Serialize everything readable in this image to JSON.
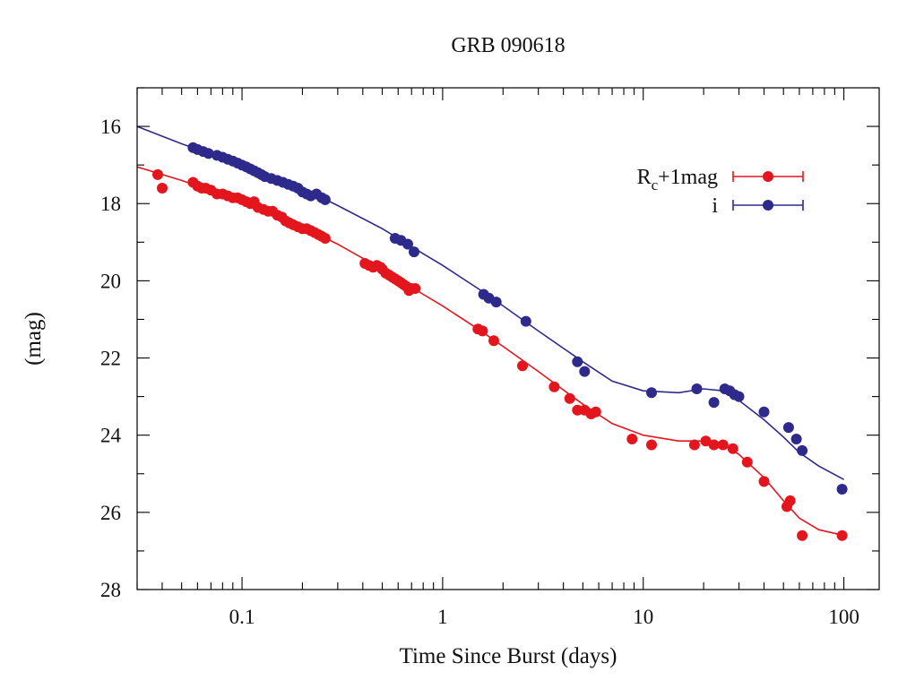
{
  "chart_data": {
    "type": "scatter",
    "title": "GRB 090618",
    "xlabel": "Time Since Burst (days)",
    "ylabel": "(mag)",
    "x_scale": "log",
    "xlim": [
      0.03,
      150
    ],
    "ylim": [
      15,
      28
    ],
    "y_inverted": true,
    "x_major_ticks": [
      0.1,
      1,
      10,
      100
    ],
    "x_tick_labels": [
      "0.1",
      "1",
      "10",
      "100"
    ],
    "y_major_ticks": [
      16,
      18,
      20,
      22,
      24,
      26,
      28
    ],
    "y_tick_labels": [
      "16",
      "18",
      "20",
      "22",
      "24",
      "26",
      "28"
    ],
    "grid": false,
    "legend_position": "top-right",
    "series": [
      {
        "name_base": "R",
        "name_sub": "c",
        "name_suffix": "+1mag",
        "color": "#e3161e",
        "points": [
          [
            0.038,
            17.25
          ],
          [
            0.04,
            17.6
          ],
          [
            0.057,
            17.45
          ],
          [
            0.06,
            17.55
          ],
          [
            0.063,
            17.6
          ],
          [
            0.066,
            17.6
          ],
          [
            0.07,
            17.65
          ],
          [
            0.075,
            17.75
          ],
          [
            0.08,
            17.75
          ],
          [
            0.085,
            17.8
          ],
          [
            0.09,
            17.85
          ],
          [
            0.095,
            17.85
          ],
          [
            0.1,
            17.9
          ],
          [
            0.105,
            17.95
          ],
          [
            0.11,
            18.0
          ],
          [
            0.115,
            17.95
          ],
          [
            0.12,
            18.1
          ],
          [
            0.128,
            18.15
          ],
          [
            0.135,
            18.2
          ],
          [
            0.142,
            18.2
          ],
          [
            0.15,
            18.3
          ],
          [
            0.158,
            18.35
          ],
          [
            0.165,
            18.45
          ],
          [
            0.172,
            18.5
          ],
          [
            0.18,
            18.55
          ],
          [
            0.19,
            18.6
          ],
          [
            0.2,
            18.65
          ],
          [
            0.21,
            18.65
          ],
          [
            0.22,
            18.7
          ],
          [
            0.23,
            18.75
          ],
          [
            0.24,
            18.8
          ],
          [
            0.25,
            18.85
          ],
          [
            0.26,
            18.9
          ],
          [
            0.41,
            19.55
          ],
          [
            0.43,
            19.6
          ],
          [
            0.45,
            19.65
          ],
          [
            0.47,
            19.6
          ],
          [
            0.49,
            19.65
          ],
          [
            0.5,
            19.7
          ],
          [
            0.52,
            19.8
          ],
          [
            0.54,
            19.85
          ],
          [
            0.56,
            19.9
          ],
          [
            0.58,
            19.95
          ],
          [
            0.6,
            20.0
          ],
          [
            0.62,
            20.05
          ],
          [
            0.64,
            20.1
          ],
          [
            0.66,
            20.15
          ],
          [
            0.68,
            20.25
          ],
          [
            0.7,
            20.2
          ],
          [
            0.73,
            20.2
          ],
          [
            1.5,
            21.25
          ],
          [
            1.58,
            21.3
          ],
          [
            1.8,
            21.55
          ],
          [
            2.5,
            22.2
          ],
          [
            3.6,
            22.75
          ],
          [
            4.3,
            23.05
          ],
          [
            4.7,
            23.35
          ],
          [
            5.1,
            23.35
          ],
          [
            5.5,
            23.45
          ],
          [
            5.8,
            23.4
          ],
          [
            8.8,
            24.1
          ],
          [
            11.0,
            24.25
          ],
          [
            18.0,
            24.25
          ],
          [
            20.5,
            24.15
          ],
          [
            22.5,
            24.25
          ],
          [
            25.0,
            24.25
          ],
          [
            28.0,
            24.35
          ],
          [
            33.0,
            24.7
          ],
          [
            40.0,
            25.2
          ],
          [
            52.0,
            25.85
          ],
          [
            54.0,
            25.7
          ],
          [
            62.0,
            26.6
          ],
          [
            98.0,
            26.6
          ]
        ],
        "model": [
          [
            0.03,
            17.05
          ],
          [
            0.05,
            17.4
          ],
          [
            0.1,
            17.95
          ],
          [
            0.2,
            18.6
          ],
          [
            0.3,
            19.05
          ],
          [
            0.5,
            19.7
          ],
          [
            0.8,
            20.35
          ],
          [
            1.0,
            20.65
          ],
          [
            1.5,
            21.25
          ],
          [
            2.0,
            21.7
          ],
          [
            3.0,
            22.35
          ],
          [
            5.0,
            23.2
          ],
          [
            7.0,
            23.7
          ],
          [
            10.0,
            24.0
          ],
          [
            15.0,
            24.15
          ],
          [
            20.0,
            24.15
          ],
          [
            25.0,
            24.25
          ],
          [
            30.0,
            24.5
          ],
          [
            40.0,
            25.1
          ],
          [
            50.0,
            25.7
          ],
          [
            60.0,
            26.15
          ],
          [
            75.0,
            26.45
          ],
          [
            100.0,
            26.6
          ]
        ]
      },
      {
        "name": "i",
        "color": "#2e2a8c",
        "points": [
          [
            0.057,
            16.55
          ],
          [
            0.06,
            16.6
          ],
          [
            0.064,
            16.65
          ],
          [
            0.068,
            16.7
          ],
          [
            0.075,
            16.75
          ],
          [
            0.08,
            16.8
          ],
          [
            0.085,
            16.85
          ],
          [
            0.09,
            16.9
          ],
          [
            0.095,
            16.95
          ],
          [
            0.1,
            17.0
          ],
          [
            0.105,
            17.05
          ],
          [
            0.11,
            17.1
          ],
          [
            0.115,
            17.15
          ],
          [
            0.12,
            17.2
          ],
          [
            0.125,
            17.25
          ],
          [
            0.13,
            17.3
          ],
          [
            0.14,
            17.35
          ],
          [
            0.15,
            17.4
          ],
          [
            0.16,
            17.45
          ],
          [
            0.17,
            17.5
          ],
          [
            0.18,
            17.55
          ],
          [
            0.19,
            17.6
          ],
          [
            0.2,
            17.7
          ],
          [
            0.21,
            17.75
          ],
          [
            0.22,
            17.8
          ],
          [
            0.235,
            17.75
          ],
          [
            0.25,
            17.85
          ],
          [
            0.26,
            17.9
          ],
          [
            0.58,
            18.9
          ],
          [
            0.62,
            18.95
          ],
          [
            0.67,
            19.05
          ],
          [
            0.72,
            19.25
          ],
          [
            1.6,
            20.35
          ],
          [
            1.7,
            20.45
          ],
          [
            1.85,
            20.55
          ],
          [
            2.6,
            21.05
          ],
          [
            4.7,
            22.1
          ],
          [
            5.1,
            22.35
          ],
          [
            11.0,
            22.9
          ],
          [
            18.5,
            22.8
          ],
          [
            22.5,
            23.15
          ],
          [
            25.5,
            22.8
          ],
          [
            27.0,
            22.85
          ],
          [
            28.5,
            22.95
          ],
          [
            30.0,
            23.0
          ],
          [
            40.0,
            23.4
          ],
          [
            53.0,
            23.8
          ],
          [
            58.0,
            24.1
          ],
          [
            62.0,
            24.4
          ],
          [
            98.0,
            25.4
          ]
        ],
        "model": [
          [
            0.03,
            16.0
          ],
          [
            0.05,
            16.45
          ],
          [
            0.1,
            17.0
          ],
          [
            0.2,
            17.6
          ],
          [
            0.3,
            18.05
          ],
          [
            0.5,
            18.65
          ],
          [
            0.8,
            19.3
          ],
          [
            1.0,
            19.6
          ],
          [
            1.5,
            20.2
          ],
          [
            2.0,
            20.65
          ],
          [
            3.0,
            21.3
          ],
          [
            5.0,
            22.1
          ],
          [
            7.0,
            22.6
          ],
          [
            10.0,
            22.85
          ],
          [
            15.0,
            22.9
          ],
          [
            20.0,
            22.8
          ],
          [
            25.0,
            22.85
          ],
          [
            30.0,
            23.1
          ],
          [
            40.0,
            23.6
          ],
          [
            50.0,
            24.05
          ],
          [
            60.0,
            24.45
          ],
          [
            75.0,
            24.8
          ],
          [
            100.0,
            25.15
          ]
        ],
        "color_hex": "#2e2a8c"
      }
    ]
  }
}
